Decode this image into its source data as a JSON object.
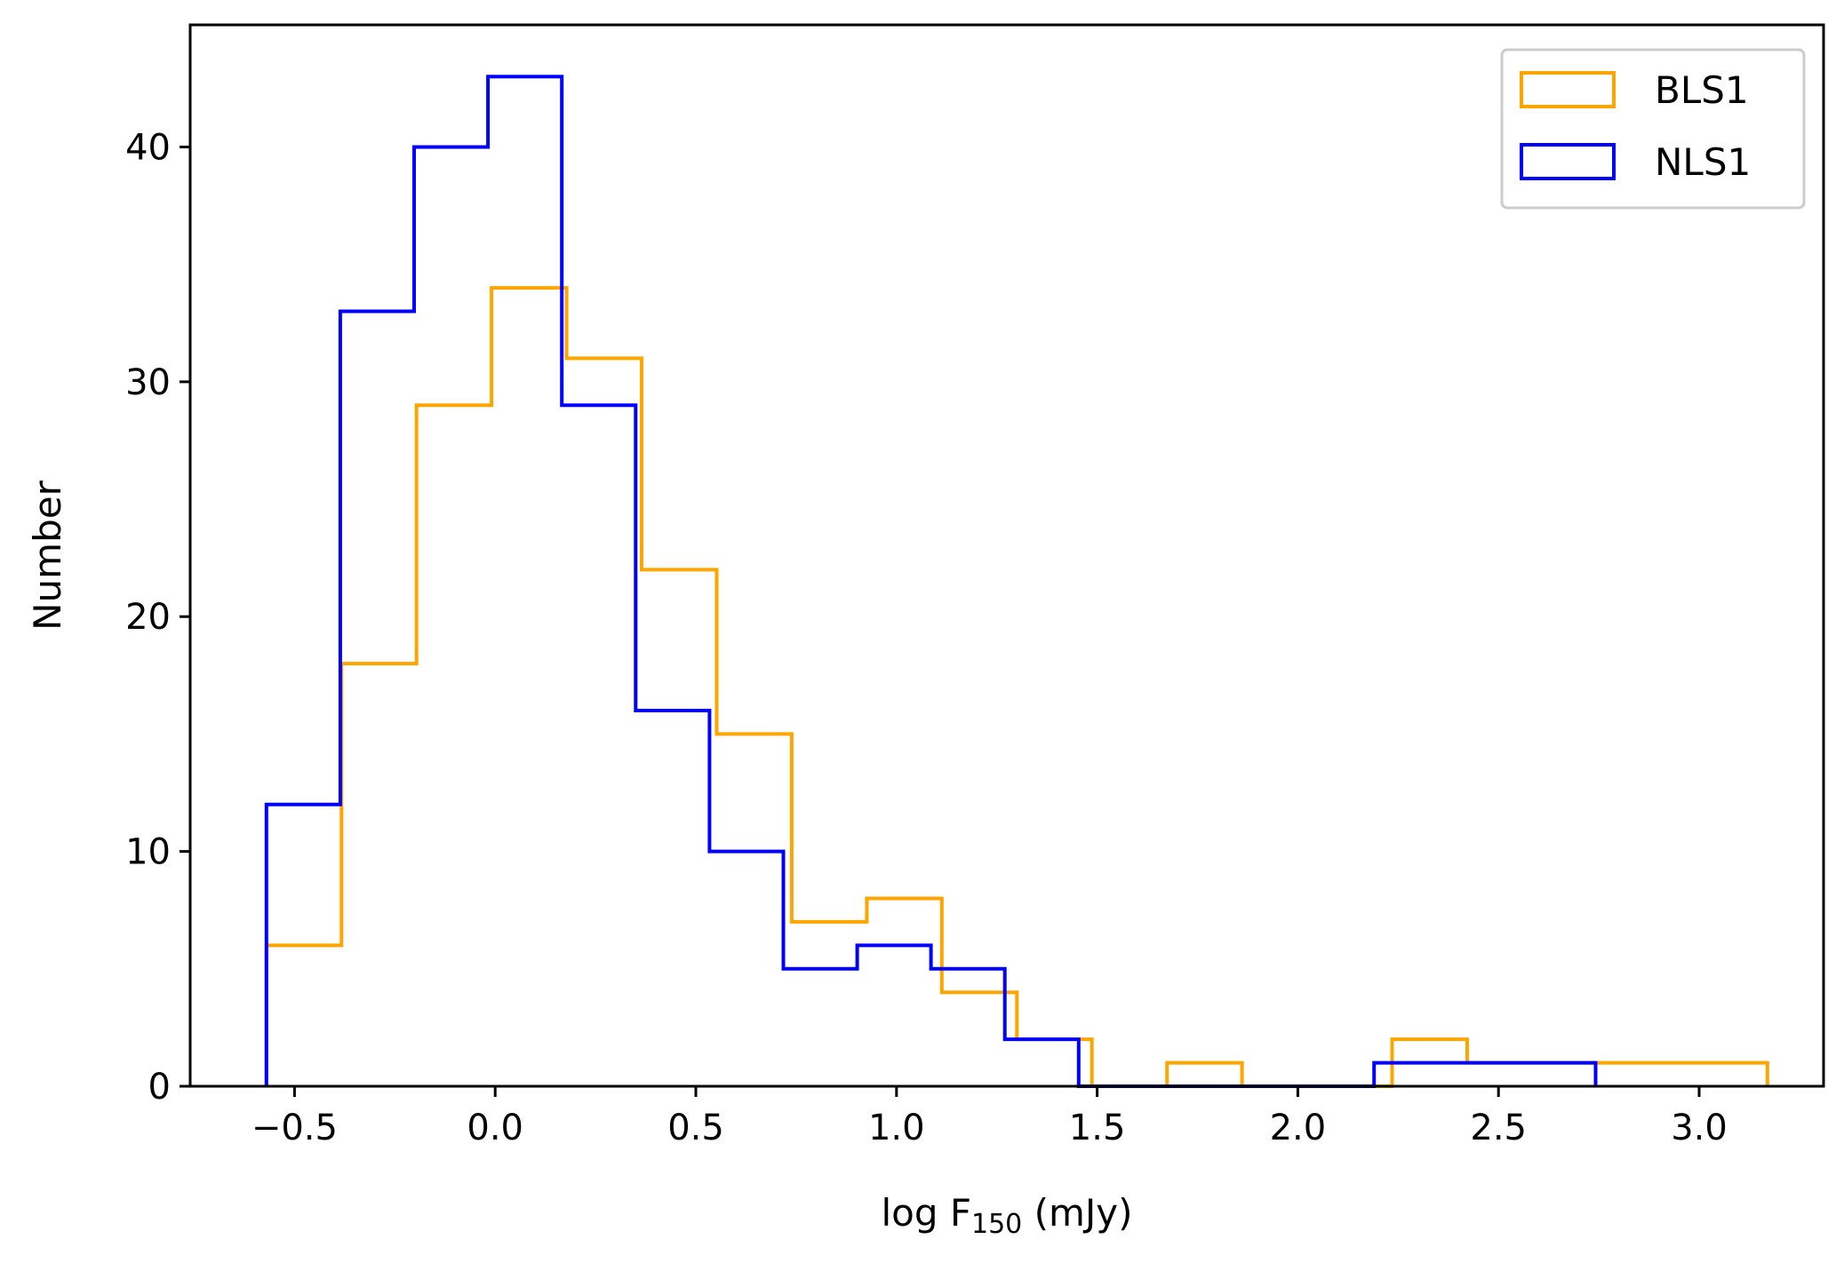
{
  "chart_data": {
    "type": "histogram",
    "title": "",
    "xlabel": {
      "prefix": "log F",
      "subscript": "150",
      "suffix": " (mJy)"
    },
    "ylabel": "Number",
    "xlim": [
      -0.76,
      3.31
    ],
    "ylim": [
      0,
      45.2
    ],
    "grid": false,
    "legend_position": "top-right",
    "xticks": [
      -0.5,
      0.0,
      0.5,
      1.0,
      1.5,
      2.0,
      2.5,
      3.0
    ],
    "xtick_labels": [
      "−0.5",
      "0.0",
      "0.5",
      "1.0",
      "1.5",
      "2.0",
      "2.5",
      "3.0"
    ],
    "yticks": [
      0,
      10,
      20,
      30,
      40
    ],
    "ytick_labels": [
      "0",
      "10",
      "20",
      "30",
      "40"
    ],
    "series": [
      {
        "name": "BLS1",
        "color": "#FFA500",
        "bin_edges": [
          -0.57,
          -0.383,
          -0.196,
          -0.009,
          0.178,
          0.365,
          0.552,
          0.739,
          0.926,
          1.113,
          1.3,
          1.487,
          1.674,
          1.861,
          2.048,
          2.235,
          2.422,
          2.609,
          2.796,
          2.983,
          3.17
        ],
        "counts": [
          6,
          18,
          29,
          34,
          31,
          22,
          15,
          7,
          8,
          4,
          2,
          0,
          1,
          0,
          0,
          2,
          1,
          1,
          1,
          1
        ]
      },
      {
        "name": "NLS1",
        "color": "#0000FF",
        "bin_edges": [
          -0.57,
          -0.386,
          -0.202,
          -0.018,
          0.166,
          0.35,
          0.534,
          0.718,
          0.902,
          1.086,
          1.27,
          1.454,
          1.638,
          1.822,
          2.006,
          2.19,
          2.374,
          2.558,
          2.742
        ],
        "counts": [
          12,
          33,
          40,
          43,
          29,
          16,
          10,
          5,
          6,
          5,
          2,
          0,
          0,
          0,
          0,
          1,
          1,
          1
        ]
      }
    ]
  }
}
